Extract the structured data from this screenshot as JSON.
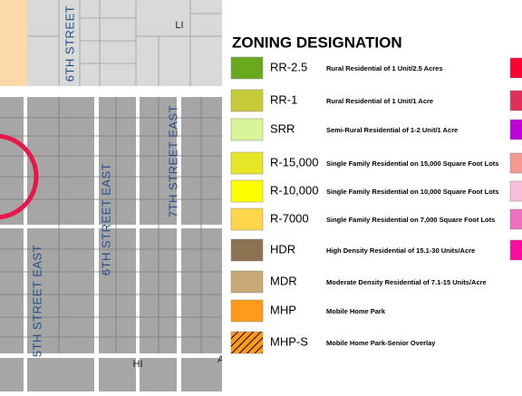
{
  "map": {
    "streets": [
      {
        "label": "6TH STREET"
      },
      {
        "label": "7TH STREET EAST"
      },
      {
        "label": "6TH STREET EAST"
      },
      {
        "label": "5TH STREET EAST"
      }
    ],
    "zone_labels": [
      "LI",
      "HI",
      "A"
    ]
  },
  "legend": {
    "title": "ZONING DESIGNATION",
    "items": [
      {
        "code": "RR-2.5",
        "description": "Rural Residential of 1 Unit/2.5 Acres",
        "color": "#6aa91e"
      },
      {
        "code": "RR-1",
        "description": "Rural Residential of 1 Unit/1 Acre",
        "color": "#c6cb3a"
      },
      {
        "code": "SRR",
        "description": "Semi-Rural Residential of 1-2 Unit/1 Acre",
        "color": "#d9f59a"
      },
      {
        "code": "R-15,000",
        "description": "Single Family Residential on 15,000 Square Foot Lots",
        "color": "#e5e625"
      },
      {
        "code": "R-10,000",
        "description": "Single Family Residential on 10,000 Square Foot Lots",
        "color": "#ffff00"
      },
      {
        "code": "R-7000",
        "description": "Single Family Residential on 7,000 Square Foot Lots",
        "color": "#ffd54a"
      },
      {
        "code": "HDR",
        "description": "High Density Residential of 15.1-30 Units/Acre",
        "color": "#8c7350"
      },
      {
        "code": "MDR",
        "description": "Moderate Density Residential of 7.1-15 Units/Acre",
        "color": "#c8a878"
      },
      {
        "code": "MHP",
        "description": "Mobile Home Park",
        "color": "#ff9a1a"
      },
      {
        "code": "MHP-S",
        "description": "Mobile Home Park-Senior Overlay",
        "color": "#ff9a1a",
        "hatched": true
      }
    ],
    "second_column_colors": [
      "#ff0033",
      "#e0305a",
      "#c000d8",
      "#f59a90",
      "#f8c0dd",
      "#f070c0",
      "#ff0aa0"
    ]
  }
}
